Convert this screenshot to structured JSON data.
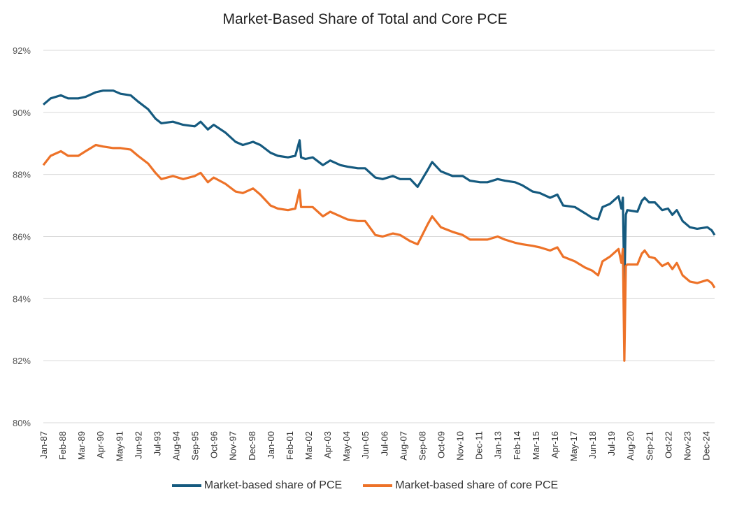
{
  "chart_data": {
    "type": "line",
    "title": "Market-Based Share of Total and Core PCE",
    "xlabel": "",
    "ylabel": "",
    "ylim": [
      80,
      92
    ],
    "y_ticks": [
      "80%",
      "82%",
      "84%",
      "86%",
      "88%",
      "90%",
      "92%"
    ],
    "x_range": [
      "1987-01",
      "2025-06"
    ],
    "x_ticks": [
      "Jan-87",
      "Feb-88",
      "Mar-89",
      "Apr-90",
      "May-91",
      "Jun-92",
      "Jul-93",
      "Aug-94",
      "Sep-95",
      "Oct-96",
      "Nov-97",
      "Dec-98",
      "Jan-00",
      "Feb-01",
      "Mar-02",
      "Apr-03",
      "May-04",
      "Jun-05",
      "Jul-06",
      "Aug-07",
      "Sep-08",
      "Oct-09",
      "Nov-10",
      "Dec-11",
      "Jan-13",
      "Feb-14",
      "Mar-15",
      "Apr-16",
      "May-17",
      "Jun-18",
      "Jul-19",
      "Aug-20",
      "Sep-21",
      "Oct-22",
      "Nov-23",
      "Dec-24"
    ],
    "grid": "horizontal",
    "legend_position": "bottom",
    "x": [
      "1987-01",
      "1987-06",
      "1988-01",
      "1988-06",
      "1989-01",
      "1989-06",
      "1990-01",
      "1990-06",
      "1991-01",
      "1991-06",
      "1992-01",
      "1992-06",
      "1993-01",
      "1993-06",
      "1993-10",
      "1994-06",
      "1995-01",
      "1995-09",
      "1996-01",
      "1996-06",
      "1996-10",
      "1997-06",
      "1998-01",
      "1998-06",
      "1999-01",
      "1999-06",
      "2000-01",
      "2000-06",
      "2001-01",
      "2001-06",
      "2001-09",
      "2001-10",
      "2002-01",
      "2002-06",
      "2003-01",
      "2003-06",
      "2004-01",
      "2004-06",
      "2005-01",
      "2005-06",
      "2006-01",
      "2006-06",
      "2007-01",
      "2007-06",
      "2008-01",
      "2008-06",
      "2009-01",
      "2009-04",
      "2009-10",
      "2010-06",
      "2011-01",
      "2011-06",
      "2012-01",
      "2012-06",
      "2013-01",
      "2013-06",
      "2014-01",
      "2014-06",
      "2015-01",
      "2015-06",
      "2016-01",
      "2016-06",
      "2016-10",
      "2017-06",
      "2018-01",
      "2018-06",
      "2018-10",
      "2019-01",
      "2019-06",
      "2019-12",
      "2020-02",
      "2020-03",
      "2020-04",
      "2020-05",
      "2020-06",
      "2021-01",
      "2021-04",
      "2021-06",
      "2021-09",
      "2022-01",
      "2022-06",
      "2022-10",
      "2023-01",
      "2023-04",
      "2023-08",
      "2024-01",
      "2024-06",
      "2025-01",
      "2025-04",
      "2025-06"
    ],
    "series": [
      {
        "name": "Market-based share of PCE",
        "color": "#155a7f",
        "values": [
          90.25,
          90.45,
          90.55,
          90.45,
          90.45,
          90.5,
          90.65,
          90.7,
          90.7,
          90.6,
          90.55,
          90.35,
          90.1,
          89.8,
          89.65,
          89.7,
          89.6,
          89.55,
          89.7,
          89.45,
          89.6,
          89.35,
          89.05,
          88.95,
          89.05,
          88.95,
          88.7,
          88.6,
          88.55,
          88.6,
          89.1,
          88.55,
          88.5,
          88.55,
          88.3,
          88.45,
          88.3,
          88.25,
          88.2,
          88.2,
          87.9,
          87.85,
          87.95,
          87.85,
          87.85,
          87.6,
          88.15,
          88.4,
          88.1,
          87.95,
          87.95,
          87.8,
          87.75,
          87.75,
          87.85,
          87.8,
          87.75,
          87.65,
          87.45,
          87.4,
          87.25,
          87.35,
          87.0,
          86.95,
          86.75,
          86.6,
          86.55,
          86.95,
          87.05,
          87.3,
          86.9,
          87.25,
          84.3,
          86.7,
          86.85,
          86.8,
          87.15,
          87.25,
          87.1,
          87.1,
          86.85,
          86.9,
          86.7,
          86.85,
          86.5,
          86.3,
          86.25,
          86.3,
          86.2,
          86.05
        ]
      },
      {
        "name": "Market-based share of core PCE",
        "color": "#ed7228",
        "values": [
          88.3,
          88.6,
          88.75,
          88.6,
          88.6,
          88.75,
          88.95,
          88.9,
          88.85,
          88.85,
          88.8,
          88.6,
          88.35,
          88.05,
          87.85,
          87.95,
          87.85,
          87.95,
          88.05,
          87.75,
          87.9,
          87.7,
          87.45,
          87.4,
          87.55,
          87.35,
          87.0,
          86.9,
          86.85,
          86.9,
          87.5,
          86.95,
          86.95,
          86.95,
          86.65,
          86.8,
          86.65,
          86.55,
          86.5,
          86.5,
          86.05,
          86.0,
          86.1,
          86.05,
          85.85,
          85.75,
          86.4,
          86.65,
          86.3,
          86.15,
          86.05,
          85.9,
          85.9,
          85.9,
          86.0,
          85.9,
          85.8,
          85.75,
          85.7,
          85.65,
          85.55,
          85.65,
          85.35,
          85.2,
          85.0,
          84.9,
          84.75,
          85.2,
          85.35,
          85.6,
          85.15,
          85.6,
          82.0,
          85.05,
          85.1,
          85.1,
          85.45,
          85.55,
          85.35,
          85.3,
          85.05,
          85.15,
          84.95,
          85.15,
          84.75,
          84.55,
          84.5,
          84.6,
          84.5,
          84.35
        ]
      }
    ]
  }
}
